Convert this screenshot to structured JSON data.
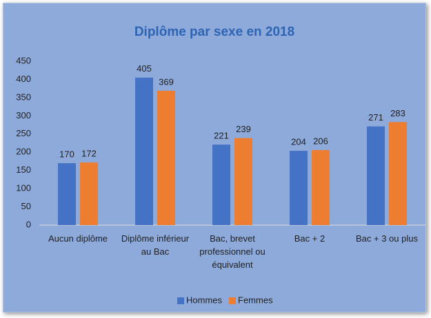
{
  "chart_data": {
    "type": "bar",
    "title": "Diplôme par sexe en 2018",
    "categories": [
      "Aucun diplôme",
      "Diplôme inférieur au Bac",
      "Bac, brevet professionnel ou équivalent",
      "Bac + 2",
      "Bac + 3 ou plus"
    ],
    "series": [
      {
        "name": "Hommes",
        "color": "#4472c4",
        "values": [
          170,
          405,
          221,
          204,
          271
        ]
      },
      {
        "name": "Femmes",
        "color": "#ed7d31",
        "values": [
          172,
          369,
          239,
          206,
          283
        ]
      }
    ],
    "ylim": [
      0,
      450
    ],
    "yticks": [
      0,
      50,
      100,
      150,
      200,
      250,
      300,
      350,
      400,
      450
    ],
    "grid": false,
    "legend": "bottom"
  }
}
